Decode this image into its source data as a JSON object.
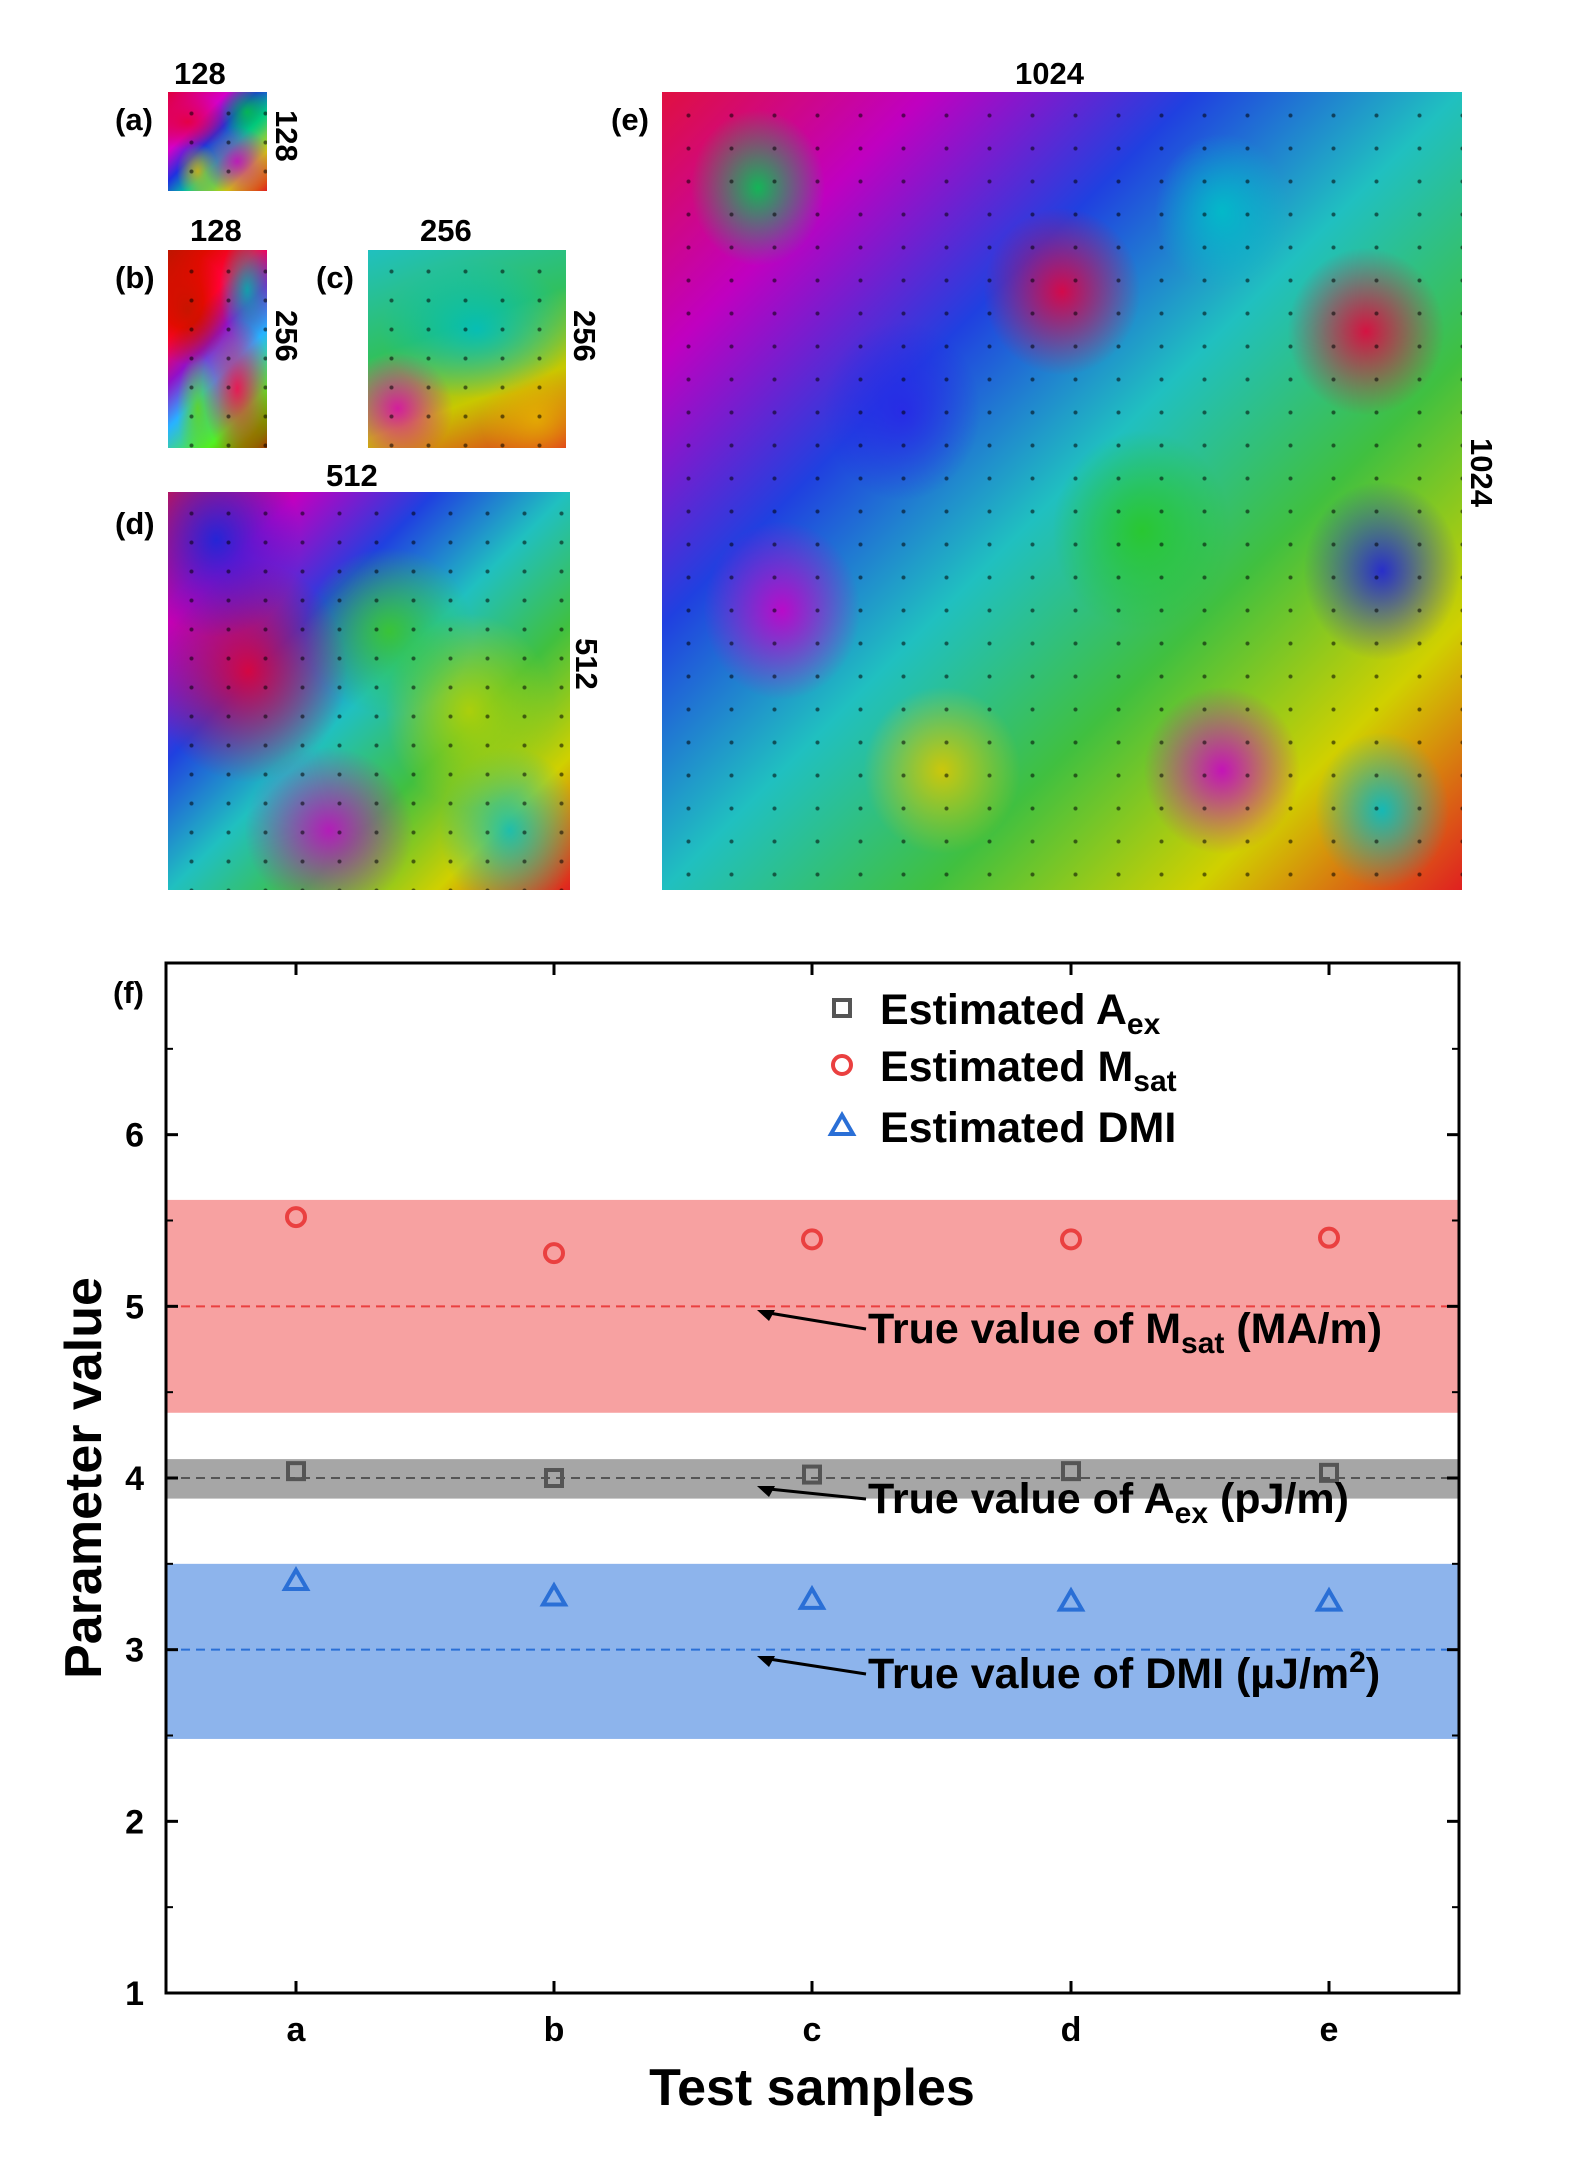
{
  "panels": [
    {
      "id": "a",
      "letter": "(a)",
      "width_label": "128",
      "height_label": "128"
    },
    {
      "id": "b",
      "letter": "(b)",
      "width_label": "128",
      "height_label": "256"
    },
    {
      "id": "c",
      "letter": "(c)",
      "width_label": "256",
      "height_label": "256"
    },
    {
      "id": "d",
      "letter": "(d)",
      "width_label": "512",
      "height_label": "512"
    },
    {
      "id": "e",
      "letter": "(e)",
      "width_label": "1024",
      "height_label": "1024"
    }
  ],
  "chart_data": {
    "type": "scatter",
    "panel_label": "(f)",
    "xlabel": "Test samples",
    "ylabel": "Parameter value",
    "categories": [
      "a",
      "b",
      "c",
      "d",
      "e"
    ],
    "ylim": [
      1,
      7
    ],
    "yticks": [
      1,
      2,
      3,
      4,
      5,
      6
    ],
    "legend_position": "top-right",
    "series": [
      {
        "name": "Estimated A",
        "sub": "ex",
        "marker": "square",
        "color": "#555555",
        "values": [
          4.04,
          4.0,
          4.02,
          4.04,
          4.03
        ]
      },
      {
        "name": "Estimated M",
        "sub": "sat",
        "marker": "circle",
        "color": "#ea4040",
        "values": [
          5.52,
          5.31,
          5.39,
          5.39,
          5.4
        ]
      },
      {
        "name": "Estimated DMI",
        "sub": "",
        "marker": "triangle",
        "color": "#2a6fd6",
        "values": [
          3.4,
          3.31,
          3.29,
          3.28,
          3.28
        ]
      }
    ],
    "bands": [
      {
        "name": "Msat",
        "low": 4.38,
        "high": 5.62,
        "color": "#f7a1a1"
      },
      {
        "name": "Aex",
        "low": 3.88,
        "high": 4.11,
        "color": "#a6a6a6"
      },
      {
        "name": "DMI",
        "low": 2.48,
        "high": 3.5,
        "color": "#8db4ec"
      }
    ],
    "true_values": [
      {
        "name": "Msat",
        "value": 5,
        "color": "#ea4040",
        "label_main": "True value of M",
        "label_sub": "sat",
        "label_tail": " (MA/m)"
      },
      {
        "name": "Aex",
        "value": 4,
        "color": "#555555",
        "label_main": "True value of A",
        "label_sub": "ex",
        "label_tail": " (pJ/m)"
      },
      {
        "name": "DMI",
        "value": 3,
        "color": "#2a6fd6",
        "label_main": "True value of DMI (µJ/m",
        "label_sup": "2",
        "label_tail": ")"
      }
    ]
  }
}
